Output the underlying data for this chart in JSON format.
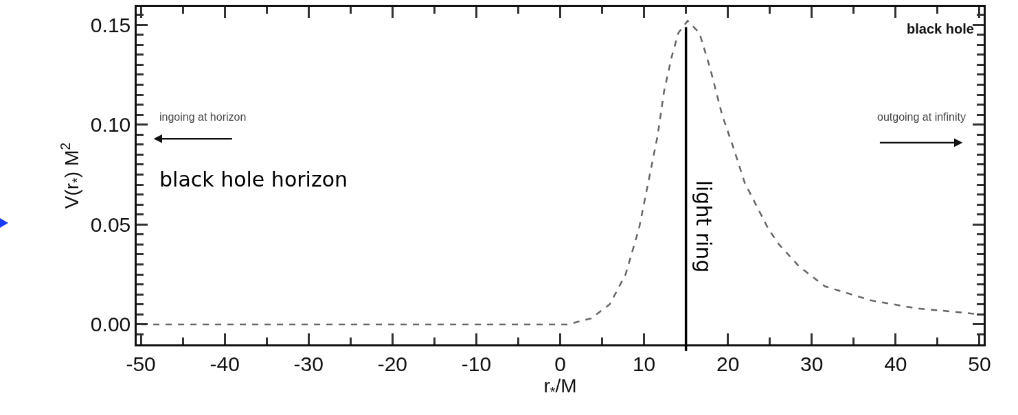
{
  "chart_data": {
    "type": "line",
    "xlabel": "r$_{*}$/M",
    "ylabel": "V(r$_{*}$) M$^{2}$",
    "x": [
      -50,
      -40,
      -30,
      -20,
      -10,
      0,
      0.9,
      3.7,
      5.9,
      7.8,
      9.4,
      10.5,
      11.6,
      12.4,
      13.3,
      14.1,
      15.2,
      16.6,
      17.9,
      19.3,
      20.7,
      22.0,
      24.8,
      26.1,
      28.5,
      31.6,
      37.1,
      42.5,
      47.8,
      50
    ],
    "series": [
      {
        "color": "#666666",
        "values": [
          0,
          0,
          0,
          0,
          0,
          0,
          0.0,
          0.003,
          0.01,
          0.025,
          0.048,
          0.071,
          0.094,
          0.117,
          0.134,
          0.146,
          0.152,
          0.146,
          0.128,
          0.105,
          0.088,
          0.071,
          0.048,
          0.04,
          0.029,
          0.019,
          0.012,
          0.008,
          0.006,
          0.005
        ]
      }
    ],
    "xlim": [
      -50.5,
      50.5
    ],
    "xticks": [
      -50,
      -40,
      -30,
      -20,
      -10,
      0,
      10,
      20,
      30,
      40,
      50
    ],
    "ylim": [
      -0.01,
      0.159
    ],
    "yticks": [
      {
        "value": 0,
        "label": "0.00"
      },
      0.05,
      {
        "value": 0.1,
        "label": "0.10"
      },
      0.15
    ],
    "ref_lines": [
      {
        "axis": "x",
        "value": 15,
        "label": "light ring",
        "color": "#000000",
        "line_style": "solid"
      }
    ],
    "annotations": [
      "black hole",
      "ingoing at horizon",
      "outgoing at infinity",
      "black hole horizon"
    ],
    "grid": false,
    "marker": "none",
    "line_style": "dashed"
  }
}
